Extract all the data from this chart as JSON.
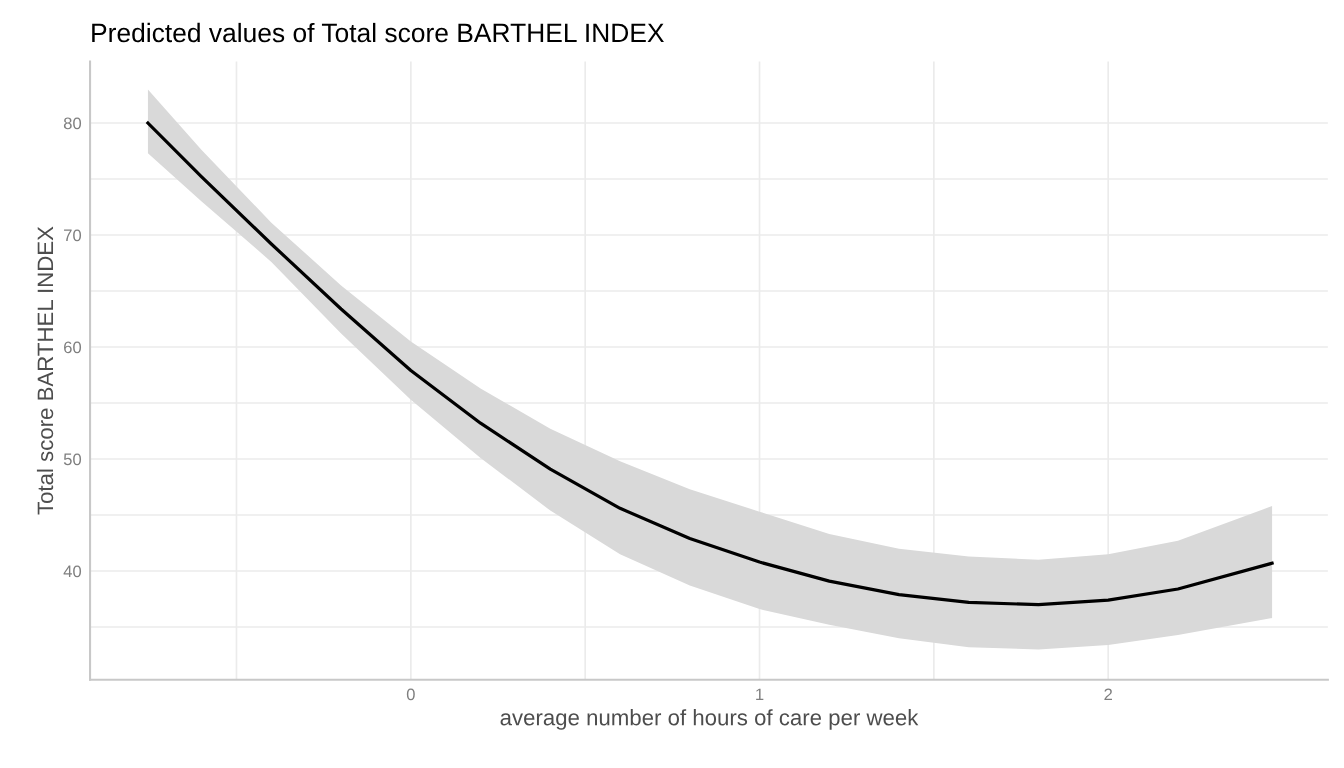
{
  "chart_data": {
    "type": "line",
    "title": "Predicted values of Total score BARTHEL INDEX",
    "xlabel": "average number of hours of care per week",
    "ylabel": "Total score BARTHEL INDEX",
    "xlim": [
      -0.92,
      2.63
    ],
    "ylim": [
      30.3,
      85.5
    ],
    "xticks": [
      {
        "value": -0.5,
        "label": null
      },
      0,
      {
        "value": 0.5,
        "label": null
      },
      1,
      {
        "value": 1.5,
        "label": null
      },
      2
    ],
    "yticks": [
      {
        "value": 35,
        "label": null
      },
      40,
      {
        "value": 45,
        "label": null
      },
      50,
      {
        "value": 55,
        "label": null
      },
      60,
      {
        "value": 65,
        "label": null
      },
      70,
      {
        "value": 75,
        "label": null
      },
      80
    ],
    "grid": true,
    "legend": false,
    "marker": "none",
    "line_style": "solid",
    "series": [
      {
        "color": "#000000",
        "x": [
          -0.754,
          -0.6,
          -0.4,
          -0.2,
          0,
          0.2,
          0.4,
          0.6,
          0.8,
          1.0,
          1.2,
          1.4,
          1.6,
          1.8,
          2.0,
          2.2,
          2.47
        ],
        "values": [
          80.0,
          75.2,
          69.2,
          63.4,
          57.9,
          53.2,
          49.1,
          45.6,
          42.9,
          40.8,
          39.1,
          37.9,
          37.2,
          37.0,
          37.4,
          38.4,
          40.7
        ],
        "lower": [
          77.3,
          73.0,
          67.6,
          61.2,
          55.3,
          50.1,
          45.4,
          41.5,
          38.7,
          36.6,
          35.2,
          34.0,
          33.2,
          33.0,
          33.4,
          34.3,
          35.8
        ],
        "upper": [
          83.0,
          77.6,
          71.1,
          65.5,
          60.5,
          56.3,
          52.7,
          49.8,
          47.3,
          45.3,
          43.3,
          42.0,
          41.3,
          41.0,
          41.5,
          42.7,
          45.8
        ]
      }
    ]
  }
}
